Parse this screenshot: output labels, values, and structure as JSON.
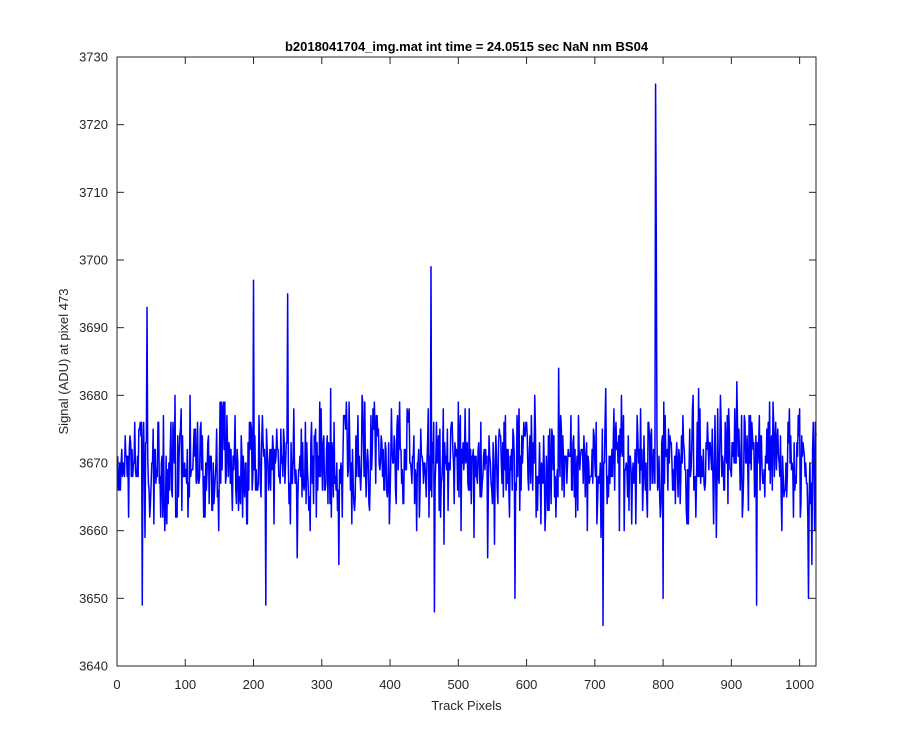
{
  "chart_data": {
    "type": "line",
    "title": "b2018041704_img.mat int time = 24.0515 sec  NaN nm BS04",
    "xlabel": "Track Pixels",
    "ylabel": "Signal (ADU) at pixel 473",
    "xlim": [
      0,
      1024
    ],
    "ylim": [
      3640,
      3730
    ],
    "xticks": [
      0,
      100,
      200,
      300,
      400,
      500,
      600,
      700,
      800,
      900,
      1000
    ],
    "yticks": [
      3640,
      3650,
      3660,
      3670,
      3680,
      3690,
      3700,
      3710,
      3720,
      3730
    ],
    "grid": false,
    "series": [
      {
        "color": "#0000ff",
        "x_start": 1,
        "x_step": 1,
        "n_points": 1024,
        "mean_level": 3670,
        "noise_range": [
          3649,
          3693
        ],
        "notable_points": [
          {
            "x": 37,
            "y": 3649
          },
          {
            "x": 44,
            "y": 3693
          },
          {
            "x": 200,
            "y": 3697
          },
          {
            "x": 218,
            "y": 3649
          },
          {
            "x": 250,
            "y": 3695
          },
          {
            "x": 460,
            "y": 3699
          },
          {
            "x": 465,
            "y": 3648
          },
          {
            "x": 583,
            "y": 3650
          },
          {
            "x": 712,
            "y": 3646
          },
          {
            "x": 789,
            "y": 3726
          },
          {
            "x": 790,
            "y": 3704
          },
          {
            "x": 800,
            "y": 3650
          },
          {
            "x": 937,
            "y": 3649
          },
          {
            "x": 1013,
            "y": 3650
          },
          {
            "x": 1018,
            "y": 3655
          }
        ]
      }
    ]
  }
}
